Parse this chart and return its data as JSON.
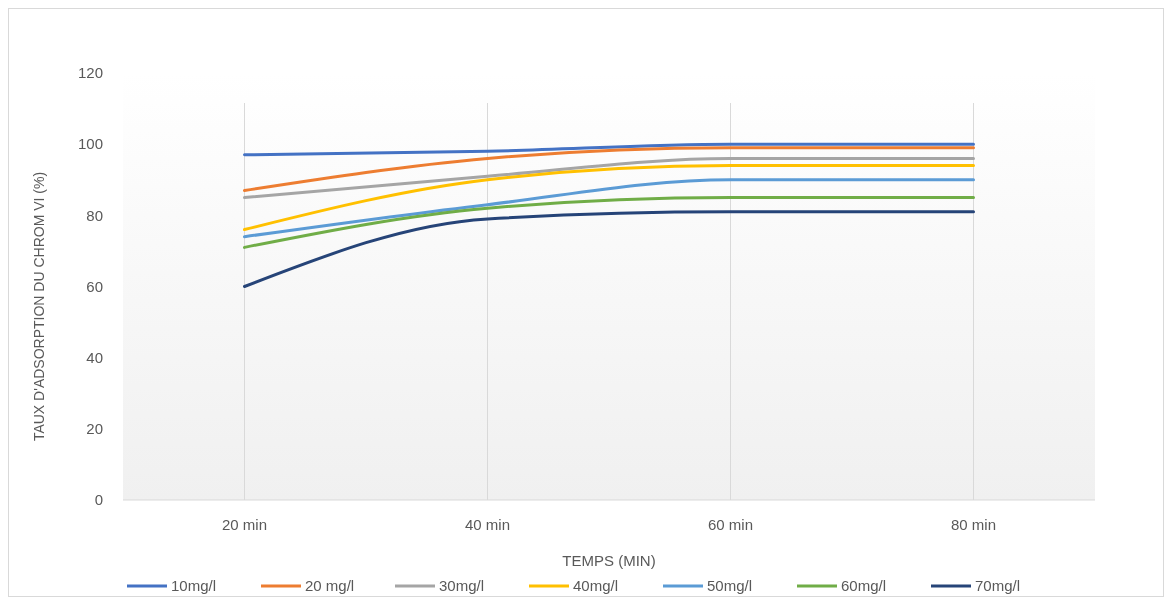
{
  "chart_data": {
    "type": "line",
    "xlabel": "TEMPS (MIN)",
    "ylabel": "TAUX D'ADSORPTION DU CHROM VI (%)",
    "categories": [
      "20 min",
      "40 min",
      "60 min",
      "80 min"
    ],
    "ylim": [
      0,
      120
    ],
    "yticks": [
      0,
      20,
      40,
      60,
      80,
      100,
      120
    ],
    "grid": "x",
    "legend": "bottom",
    "marker": "none",
    "line_style": "solid",
    "series": [
      {
        "name": "10mg/l",
        "color": "#4472c4",
        "values": [
          97,
          98,
          100,
          100
        ]
      },
      {
        "name": "20 mg/l",
        "color": "#ed7d31",
        "values": [
          87,
          96,
          99,
          99
        ]
      },
      {
        "name": "30mg/l",
        "color": "#a5a5a5",
        "values": [
          85,
          91,
          96,
          96
        ]
      },
      {
        "name": "40mg/l",
        "color": "#ffc000",
        "values": [
          76,
          90,
          94,
          94
        ]
      },
      {
        "name": "50mg/l",
        "color": "#5b9bd5",
        "values": [
          74,
          83,
          90,
          90
        ]
      },
      {
        "name": "60mg/l",
        "color": "#70ad47",
        "values": [
          71,
          82,
          85,
          85
        ]
      },
      {
        "name": "70mg/l",
        "color": "#264478",
        "values": [
          60,
          79,
          81,
          81
        ]
      }
    ]
  }
}
